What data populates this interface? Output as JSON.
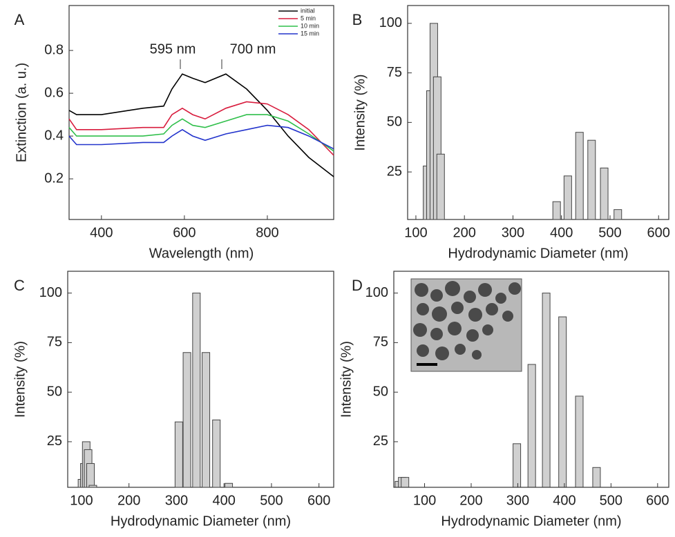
{
  "chart_data": [
    {
      "type": "line",
      "panel_label": "A",
      "x_label": "Wavelength (nm)",
      "y_label": "Extinction (a. u.)",
      "x": [
        322,
        340,
        400,
        500,
        550,
        570,
        595,
        620,
        650,
        700,
        750,
        800,
        850,
        900,
        960
      ],
      "series": [
        {
          "name": "initial",
          "color": "#000000",
          "values": [
            0.52,
            0.5,
            0.5,
            0.53,
            0.54,
            0.62,
            0.69,
            0.67,
            0.65,
            0.69,
            0.62,
            0.52,
            0.4,
            0.3,
            0.21
          ]
        },
        {
          "name": "5 min",
          "color": "#d81b3c",
          "values": [
            0.48,
            0.43,
            0.43,
            0.44,
            0.44,
            0.5,
            0.53,
            0.5,
            0.48,
            0.53,
            0.56,
            0.55,
            0.5,
            0.43,
            0.31
          ]
        },
        {
          "name": "10 min",
          "color": "#2fbf4a",
          "values": [
            0.44,
            0.4,
            0.4,
            0.4,
            0.41,
            0.45,
            0.48,
            0.45,
            0.44,
            0.47,
            0.5,
            0.5,
            0.47,
            0.41,
            0.33
          ]
        },
        {
          "name": "15 min",
          "color": "#2233cc",
          "values": [
            0.4,
            0.36,
            0.36,
            0.37,
            0.37,
            0.4,
            0.43,
            0.4,
            0.38,
            0.41,
            0.43,
            0.45,
            0.44,
            0.4,
            0.34
          ]
        }
      ],
      "annotations": [
        "595 nm",
        "700 nm"
      ],
      "xlim": [
        322,
        960
      ],
      "xticks": [
        400,
        600,
        800
      ],
      "ylim": [
        0.01,
        1.01
      ],
      "yticks": [
        0.2,
        0.4,
        0.6,
        0.8
      ],
      "legend": "upper right"
    },
    {
      "type": "bar",
      "panel_label": "B",
      "x_label": "Hydrodynamic Diameter (nm)",
      "y_label": "Intensity (%)",
      "color": "#d0d0d0",
      "x": [
        123,
        130,
        137,
        144,
        151,
        390,
        413,
        437,
        462,
        488,
        516
      ],
      "values": [
        28,
        66,
        100,
        73,
        34,
        10,
        23,
        45,
        41,
        27,
        6
      ],
      "xlim": [
        83,
        621
      ],
      "xticks": [
        100,
        200,
        300,
        400,
        500,
        600
      ],
      "ylim": [
        1,
        109
      ],
      "yticks": [
        25,
        50,
        75,
        100
      ]
    },
    {
      "type": "bar",
      "panel_label": "C",
      "x_label": "Hydrodynamic Diameter (nm)",
      "y_label": "Intensity (%)",
      "color": "#d0d0d0",
      "x": [
        101,
        106,
        110,
        114,
        119,
        124,
        305,
        322,
        342,
        362,
        384,
        410
      ],
      "values": [
        6,
        14,
        25,
        21,
        14,
        3,
        35,
        70,
        100,
        70,
        36,
        4
      ],
      "xlim": [
        71,
        631
      ],
      "xticks": [
        100,
        200,
        300,
        400,
        500,
        600
      ],
      "ylim": [
        2,
        111
      ],
      "yticks": [
        25,
        50,
        75,
        100
      ]
    },
    {
      "type": "bar",
      "panel_label": "D",
      "x_label": "Hydrodynamic Diameter (nm)",
      "y_label": "Intensity (%)",
      "color": "#d0d0d0",
      "x": [
        45,
        52,
        58,
        298,
        330,
        361,
        396,
        432,
        469
      ],
      "values": [
        5,
        7,
        7,
        24,
        64,
        100,
        88,
        48,
        12
      ],
      "xlim": [
        34,
        624
      ],
      "xticks": [
        100,
        200,
        300,
        400,
        500,
        600
      ],
      "ylim": [
        2,
        111
      ],
      "yticks": [
        25,
        50,
        75,
        100
      ]
    }
  ]
}
